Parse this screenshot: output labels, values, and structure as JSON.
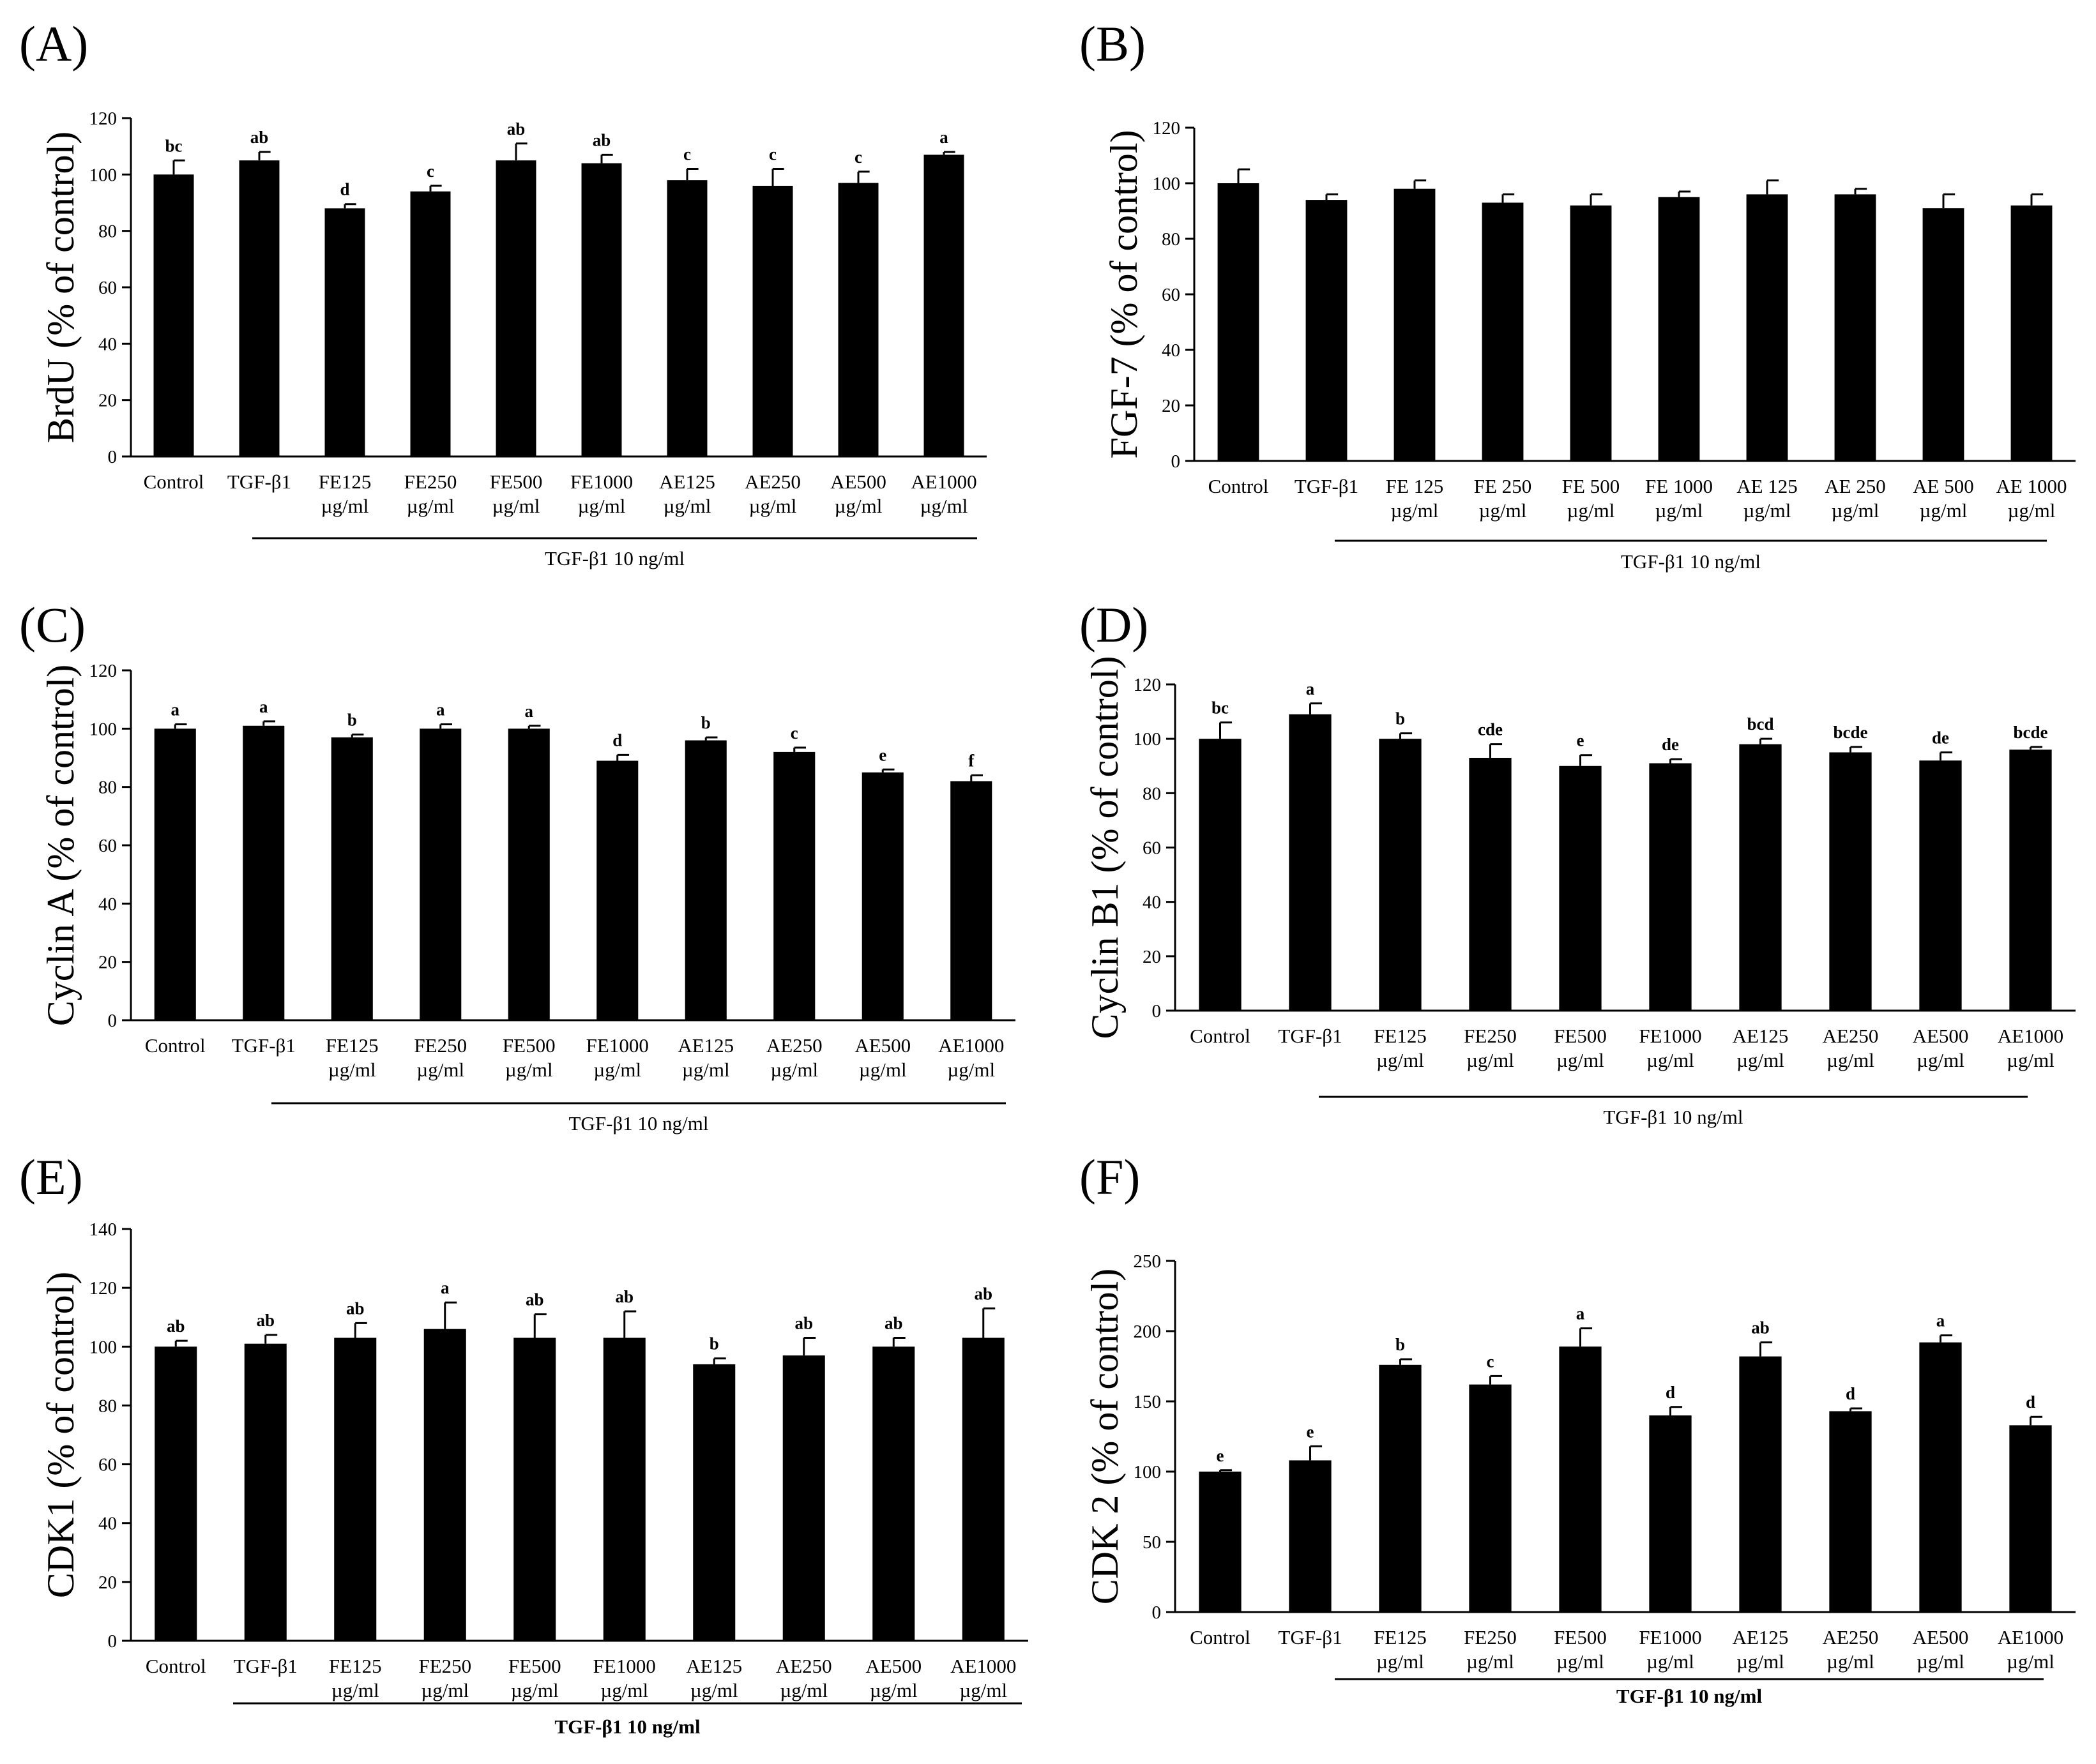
{
  "chart_data": [
    {
      "panel_label": "(A)",
      "type": "bar",
      "ylabel": "BrdU (% of control)",
      "ylim": [
        0,
        120
      ],
      "yticks": [
        0,
        20,
        40,
        60,
        80,
        100,
        120
      ],
      "categories": [
        [
          "Control"
        ],
        [
          "TGF-β1"
        ],
        [
          "FE125",
          "µg/ml"
        ],
        [
          "FE250",
          "µg/ml"
        ],
        [
          "FE500",
          "µg/ml"
        ],
        [
          "FE1000",
          "µg/ml"
        ],
        [
          "AE125",
          "µg/ml"
        ],
        [
          "AE250",
          "µg/ml"
        ],
        [
          "AE500",
          "µg/ml"
        ],
        [
          "AE1000",
          "µg/ml"
        ]
      ],
      "values": [
        100,
        105,
        88,
        94,
        105,
        104,
        98,
        96,
        97,
        107
      ],
      "errors": [
        5,
        3,
        1.5,
        2,
        6,
        3,
        4,
        6,
        4,
        1
      ],
      "letters": [
        "bc",
        "ab",
        "d",
        "c",
        "ab",
        "ab",
        "c",
        "c",
        "c",
        "a"
      ],
      "treatment_label": "TGF-β1 10 ng/ml"
    },
    {
      "panel_label": "(B)",
      "type": "bar",
      "ylabel": "FGF-7 (% of control)",
      "ylim": [
        0,
        120
      ],
      "yticks": [
        0,
        20,
        40,
        60,
        80,
        100,
        120
      ],
      "categories": [
        [
          "Control"
        ],
        [
          "TGF-β1"
        ],
        [
          "FE 125",
          "µg/ml"
        ],
        [
          "FE 250",
          "µg/ml"
        ],
        [
          "FE 500",
          "µg/ml"
        ],
        [
          "FE 1000",
          "µg/ml"
        ],
        [
          "AE 125",
          "µg/ml"
        ],
        [
          "AE 250",
          "µg/ml"
        ],
        [
          "AE 500",
          "µg/ml"
        ],
        [
          "AE 1000",
          "µg/ml"
        ]
      ],
      "values": [
        100,
        94,
        98,
        93,
        92,
        95,
        96,
        96,
        91,
        92
      ],
      "errors": [
        5,
        2,
        3,
        3,
        4,
        2,
        5,
        2,
        5,
        4
      ],
      "letters": [],
      "treatment_label": "TGF-β1 10 ng/ml"
    },
    {
      "panel_label": "(C)",
      "type": "bar",
      "ylabel": "Cyclin A (% of control)",
      "ylim": [
        0,
        120
      ],
      "yticks": [
        0,
        20,
        40,
        60,
        80,
        100,
        120
      ],
      "categories": [
        [
          "Control"
        ],
        [
          "TGF-β1"
        ],
        [
          "FE125",
          "µg/ml"
        ],
        [
          "FE250",
          "µg/ml"
        ],
        [
          "FE500",
          "µg/ml"
        ],
        [
          "FE1000",
          "µg/ml"
        ],
        [
          "AE125",
          "µg/ml"
        ],
        [
          "AE250",
          "µg/ml"
        ],
        [
          "AE500",
          "µg/ml"
        ],
        [
          "AE1000",
          "µg/ml"
        ]
      ],
      "values": [
        100,
        101,
        97,
        100,
        100,
        89,
        96,
        92,
        85,
        82
      ],
      "errors": [
        1.5,
        1.5,
        1,
        1.5,
        1,
        2,
        1,
        1.5,
        1,
        2
      ],
      "letters": [
        "a",
        "a",
        "b",
        "a",
        "a",
        "d",
        "b",
        "c",
        "e",
        "f"
      ],
      "treatment_label": "TGF-β1 10 ng/ml"
    },
    {
      "panel_label": "(D)",
      "type": "bar",
      "ylabel": "Cyclin B1 (% of control)",
      "ylim": [
        0,
        120
      ],
      "yticks": [
        0,
        20,
        40,
        60,
        80,
        100,
        120
      ],
      "categories": [
        [
          "Control"
        ],
        [
          "TGF-β1"
        ],
        [
          "FE125",
          "µg/ml"
        ],
        [
          "FE250",
          "µg/ml"
        ],
        [
          "FE500",
          "µg/ml"
        ],
        [
          "FE1000",
          "µg/ml"
        ],
        [
          "AE125",
          "µg/ml"
        ],
        [
          "AE250",
          "µg/ml"
        ],
        [
          "AE500",
          "µg/ml"
        ],
        [
          "AE1000",
          "µg/ml"
        ]
      ],
      "values": [
        100,
        109,
        100,
        93,
        90,
        91,
        98,
        95,
        92,
        96
      ],
      "errors": [
        6,
        4,
        2,
        5,
        4,
        1.5,
        2,
        2,
        3,
        1
      ],
      "letters": [
        "bc",
        "a",
        "b",
        "cde",
        "e",
        "de",
        "bcd",
        "bcde",
        "de",
        "bcde"
      ],
      "treatment_label": "TGF-β1 10 ng/ml"
    },
    {
      "panel_label": "(E)",
      "type": "bar",
      "ylabel": "CDK1 (% of control)",
      "ylim": [
        0,
        140
      ],
      "yticks": [
        0,
        20,
        40,
        60,
        80,
        100,
        120,
        140
      ],
      "categories": [
        [
          "Control"
        ],
        [
          "TGF-β1"
        ],
        [
          "FE125",
          "µg/ml"
        ],
        [
          "FE250",
          "µg/ml"
        ],
        [
          "FE500",
          "µg/ml"
        ],
        [
          "FE1000",
          "µg/ml"
        ],
        [
          "AE125",
          "µg/ml"
        ],
        [
          "AE250",
          "µg/ml"
        ],
        [
          "AE500",
          "µg/ml"
        ],
        [
          "AE1000",
          "µg/ml"
        ]
      ],
      "values": [
        100,
        101,
        103,
        106,
        103,
        103,
        94,
        97,
        100,
        103
      ],
      "errors": [
        2,
        3,
        5,
        9,
        8,
        9,
        2,
        6,
        3,
        10
      ],
      "letters": [
        "ab",
        "ab",
        "ab",
        "a",
        "ab",
        "ab",
        "b",
        "ab",
        "ab",
        "ab"
      ],
      "treatment_label": "TGF-β1 10 ng/ml"
    },
    {
      "panel_label": "(F)",
      "type": "bar",
      "ylabel": "CDK 2 (% of control)",
      "ylim": [
        0,
        250
      ],
      "yticks": [
        0,
        50,
        100,
        150,
        200,
        250
      ],
      "categories": [
        [
          "Control"
        ],
        [
          "TGF-β1"
        ],
        [
          "FE125",
          "µg/ml"
        ],
        [
          "FE250",
          "µg/ml"
        ],
        [
          "FE500",
          "µg/ml"
        ],
        [
          "FE1000",
          "µg/ml"
        ],
        [
          "AE125",
          "µg/ml"
        ],
        [
          "AE250",
          "µg/ml"
        ],
        [
          "AE500",
          "µg/ml"
        ],
        [
          "AE1000",
          "µg/ml"
        ]
      ],
      "values": [
        100,
        108,
        176,
        162,
        189,
        140,
        182,
        143,
        192,
        133
      ],
      "errors": [
        1,
        10,
        4,
        6,
        13,
        6,
        10,
        2,
        5,
        6
      ],
      "letters": [
        "e",
        "e",
        "b",
        "c",
        "a",
        "d",
        "ab",
        "d",
        "a",
        "d"
      ],
      "treatment_label": "TGF-β1 10 ng/ml"
    }
  ]
}
